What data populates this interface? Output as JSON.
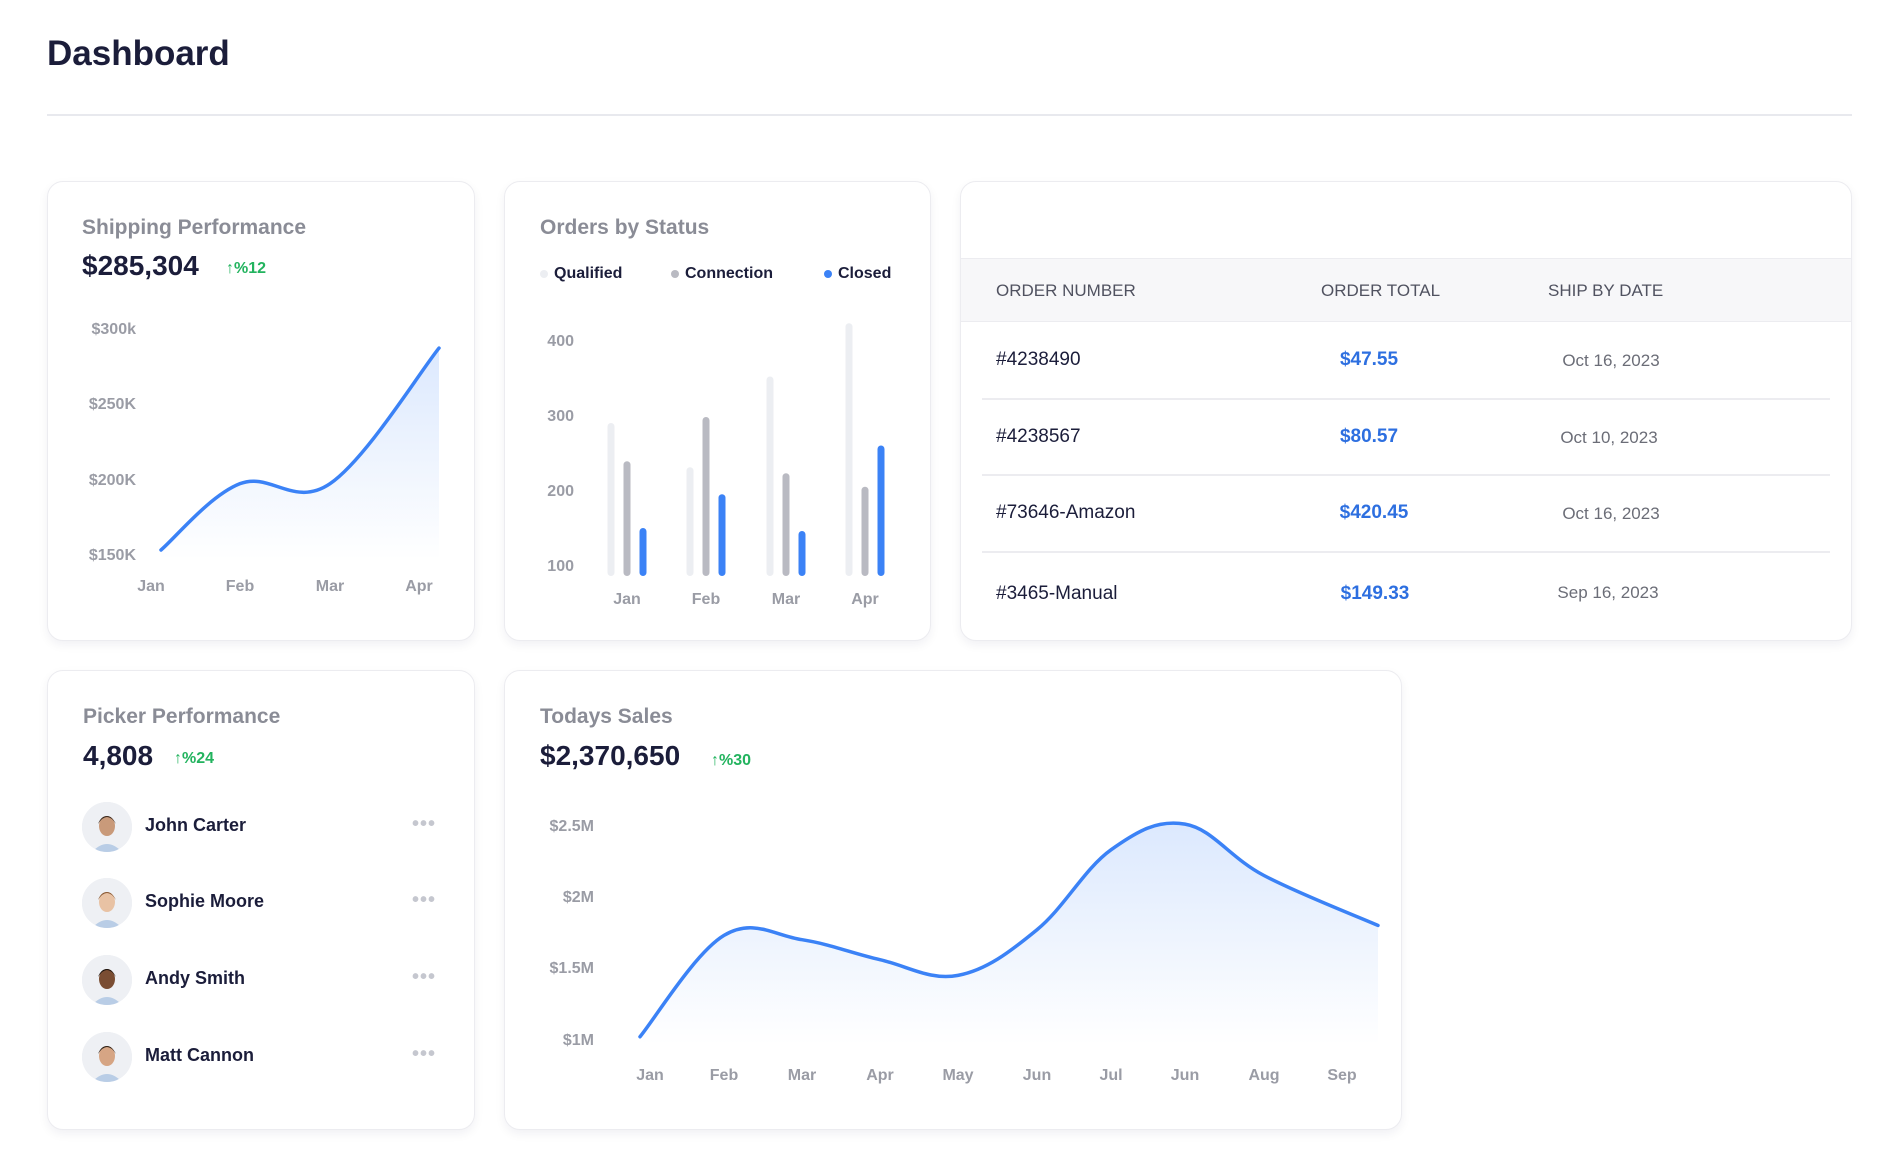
{
  "page": {
    "title": "Dashboard"
  },
  "shipping": {
    "title": "Shipping Performance",
    "value": "$285,304",
    "delta": "%12",
    "chart_data": {
      "type": "area",
      "categories": [
        "Jan",
        "Feb",
        "Mar",
        "Apr"
      ],
      "values": [
        154000,
        198000,
        198000,
        288000
      ],
      "y_ticks": [
        "$300k",
        "$250K",
        "$200K",
        "$150K"
      ],
      "ylim": [
        150000,
        300000
      ],
      "color": "#3b82f6"
    }
  },
  "orders_status": {
    "title": "Orders by Status",
    "chart_data": {
      "type": "bar",
      "categories": [
        "Jan",
        "Feb",
        "Mar",
        "Apr"
      ],
      "series": [
        {
          "name": "Qualified",
          "color": "#eceef2",
          "values": [
            292,
            233,
            354,
            425
          ]
        },
        {
          "name": "Connection",
          "color": "#b9bac2",
          "values": [
            241,
            300,
            225,
            207
          ]
        },
        {
          "name": "Closed",
          "color": "#3b82f6",
          "values": [
            152,
            197,
            148,
            262
          ]
        }
      ],
      "y_ticks": [
        "400",
        "300",
        "200",
        "100"
      ],
      "ylim": [
        88,
        430
      ],
      "legend": "top"
    }
  },
  "orders_table": {
    "columns": [
      "ORDER NUMBER",
      "ORDER TOTAL",
      "SHIP BY DATE"
    ],
    "rows": [
      {
        "number": "#4238490",
        "total": "$47.55",
        "date": "Oct 16, 2023"
      },
      {
        "number": "#4238567",
        "total": "$80.57",
        "date": "Oct 10, 2023"
      },
      {
        "number": "#73646-Amazon",
        "total": "$420.45",
        "date": "Oct 16, 2023"
      },
      {
        "number": "#3465-Manual",
        "total": "$149.33",
        "date": "Sep 16, 2023"
      }
    ]
  },
  "picker": {
    "title": "Picker Performance",
    "value": "4,808",
    "delta": "%24",
    "people": [
      {
        "name": "John Carter"
      },
      {
        "name": "Sophie Moore"
      },
      {
        "name": "Andy Smith"
      },
      {
        "name": "Matt Cannon"
      }
    ],
    "more_icon": "ellipsis-icon"
  },
  "sales": {
    "title": "Todays Sales",
    "value": "$2,370,650",
    "delta": "%30",
    "chart_data": {
      "type": "area",
      "categories": [
        "Jan",
        "Feb",
        "Mar",
        "Apr",
        "May",
        "Jun",
        "Jul",
        "Jun",
        "Aug",
        "Sep"
      ],
      "values": [
        1.03,
        1.74,
        1.71,
        1.57,
        1.46,
        1.78,
        2.34,
        2.52,
        2.16,
        1.81
      ],
      "y_ticks": [
        "$2.5M",
        "$2M",
        "$1.5M",
        "$1M"
      ],
      "ylim": [
        1,
        2.5
      ],
      "color": "#3b82f6"
    }
  },
  "colors": {
    "accent": "#3b82f6",
    "positive": "#22b35e",
    "total_text": "#2d6fe0"
  }
}
